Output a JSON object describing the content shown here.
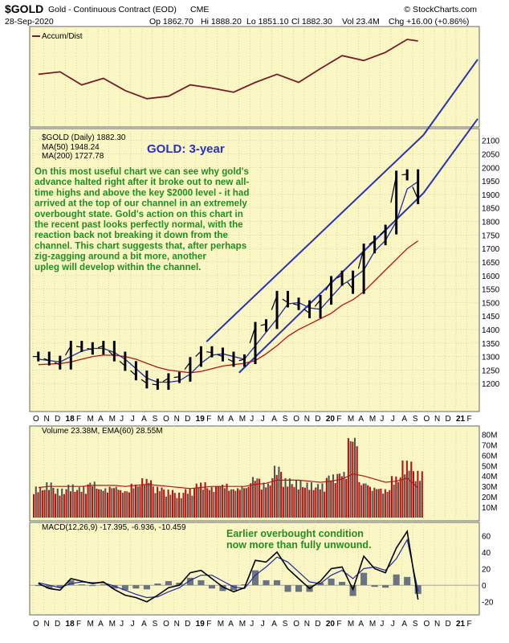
{
  "header": {
    "symbol": "$GOLD",
    "description": "Gold - Continuous Contract (EOD)",
    "exchange": "CME",
    "date": "28-Sep-2020",
    "op": "Op 1862.70",
    "hi": "Hi 1888.20",
    "lo": "Lo 1851.10",
    "cl": "Cl 1882.30",
    "vol": "Vol 23.4M",
    "chg": "Chg +16.00 (+0.86%)",
    "watermark": "© StockCharts.com"
  },
  "colors": {
    "panel_bg": "#fbf7c5",
    "price": "#000000",
    "ma50": "#1f2aa8",
    "ma200": "#b81414",
    "channel": "#2633b8",
    "annotation": "#1f8f1f",
    "title": "#2430c8",
    "volume_up": "#b81414",
    "volume_down": "#555555",
    "macd_hist": "#6a7480"
  },
  "chart_data": [
    {
      "type": "line",
      "panel": "accum-dist",
      "legend": "Accum/Dist",
      "x": [
        "2017-10",
        "2017-12",
        "2018-02",
        "2018-04",
        "2018-06",
        "2018-08",
        "2018-10",
        "2018-12",
        "2019-02",
        "2019-04",
        "2019-06",
        "2019-08",
        "2019-10",
        "2019-12",
        "2020-02",
        "2020-04",
        "2020-06",
        "2020-08",
        "2020-09"
      ],
      "values": [
        0.55,
        0.58,
        0.42,
        0.5,
        0.35,
        0.25,
        0.28,
        0.42,
        0.38,
        0.33,
        0.45,
        0.55,
        0.45,
        0.62,
        0.78,
        0.72,
        0.82,
        0.98,
        0.96
      ]
    },
    {
      "type": "line",
      "panel": "price",
      "legend": [
        "$GOLD (Daily) 1882.30",
        "MA(50) 1948.24",
        "MA(200) 1727.78"
      ],
      "title": "GOLD: 3-year",
      "annotation": "On this most useful chart we can see why gold's advance halted right after it broke out to new all-time highs and above the key $2000 level - it had arrived at the top of our channel in an extremely overbought state. Gold's action on this chart in the recent past looks perfectly normal, with the reaction back not breaking it down from the channel. This chart suggests that, after perhaps zig-zagging around a bit more, another upleg will develop within the channel.",
      "annotation_lines": [
        "On this most useful chart we can see why gold's",
        "advance halted right after it broke out to new all-",
        "time highs and above the key $2000 level - it had",
        "arrived at the top of our channel in an extremely",
        "overbought state. Gold's action on this chart in",
        "the recent past looks perfectly normal, with the",
        "reaction back not breaking it down from the",
        "channel. This chart suggests that, after perhaps",
        "zig-zagging around a bit more, another",
        "upleg will develop within the channel."
      ],
      "y_ticks": [
        2100,
        2050,
        2000,
        1950,
        1900,
        1850,
        1800,
        1750,
        1700,
        1650,
        1600,
        1550,
        1500,
        1450,
        1400,
        1350,
        1300,
        1250,
        1200
      ],
      "x": [
        "2017-10",
        "2017-11",
        "2017-12",
        "2018-01",
        "2018-02",
        "2018-03",
        "2018-04",
        "2018-05",
        "2018-06",
        "2018-07",
        "2018-08",
        "2018-09",
        "2018-10",
        "2018-11",
        "2018-12",
        "2019-01",
        "2019-02",
        "2019-03",
        "2019-04",
        "2019-05",
        "2019-06",
        "2019-07",
        "2019-08",
        "2019-09",
        "2019-10",
        "2019-11",
        "2019-12",
        "2020-01",
        "2020-02",
        "2020-03",
        "2020-04",
        "2020-05",
        "2020-06",
        "2020-07",
        "2020-08",
        "2020-09"
      ],
      "series": [
        {
          "name": "$GOLD",
          "values": [
            1300,
            1285,
            1270,
            1340,
            1335,
            1325,
            1340,
            1300,
            1265,
            1230,
            1200,
            1195,
            1220,
            1225,
            1280,
            1320,
            1315,
            1300,
            1280,
            1290,
            1410,
            1420,
            1525,
            1500,
            1490,
            1460,
            1510,
            1580,
            1600,
            1550,
            1700,
            1730,
            1770,
            1970,
            1975,
            1882
          ]
        },
        {
          "name": "MA(50)",
          "values": [
            1290,
            1285,
            1280,
            1300,
            1320,
            1330,
            1330,
            1315,
            1290,
            1255,
            1220,
            1205,
            1205,
            1210,
            1235,
            1275,
            1305,
            1310,
            1300,
            1290,
            1340,
            1390,
            1440,
            1495,
            1500,
            1480,
            1475,
            1520,
            1565,
            1590,
            1620,
            1690,
            1730,
            1800,
            1920,
            1948
          ]
        },
        {
          "name": "MA(200)",
          "values": [
            1270,
            1272,
            1274,
            1280,
            1290,
            1300,
            1305,
            1305,
            1300,
            1290,
            1275,
            1260,
            1250,
            1245,
            1240,
            1245,
            1255,
            1265,
            1270,
            1275,
            1285,
            1310,
            1340,
            1375,
            1400,
            1420,
            1440,
            1460,
            1490,
            1510,
            1540,
            1580,
            1620,
            1660,
            1700,
            1728
          ]
        }
      ],
      "channel": {
        "upper": [
          {
            "x": "2019-02",
            "y": 1355
          },
          {
            "x": "2020-10",
            "y": 2120
          }
        ],
        "lower": [
          {
            "x": "2019-05",
            "y": 1240
          },
          {
            "x": "2020-10",
            "y": 1905
          }
        ],
        "upper_ext": [
          {
            "x": "2020-10",
            "y": 2120
          },
          {
            "x": "2021-03",
            "y": 2400
          }
        ],
        "lower_ext": [
          {
            "x": "2020-10",
            "y": 1905
          },
          {
            "x": "2021-03",
            "y": 2180
          }
        ]
      }
    },
    {
      "type": "bar",
      "panel": "volume",
      "legend": "Volume 23.38M, EMA(60) 28.55M",
      "y_ticks": [
        "80M",
        "70M",
        "60M",
        "50M",
        "40M",
        "30M",
        "20M",
        "10M"
      ],
      "x": [
        "2017-10",
        "2017-11",
        "2017-12",
        "2018-01",
        "2018-02",
        "2018-03",
        "2018-04",
        "2018-05",
        "2018-06",
        "2018-07",
        "2018-08",
        "2018-09",
        "2018-10",
        "2018-11",
        "2018-12",
        "2019-01",
        "2019-02",
        "2019-03",
        "2019-04",
        "2019-05",
        "2019-06",
        "2019-07",
        "2019-08",
        "2019-09",
        "2019-10",
        "2019-11",
        "2019-12",
        "2020-01",
        "2020-02",
        "2020-03",
        "2020-04",
        "2020-05",
        "2020-06",
        "2020-07",
        "2020-08",
        "2020-09"
      ],
      "values": [
        30,
        34,
        28,
        32,
        30,
        35,
        29,
        31,
        27,
        33,
        38,
        30,
        27,
        24,
        28,
        34,
        30,
        33,
        29,
        31,
        40,
        34,
        50,
        38,
        36,
        34,
        33,
        42,
        45,
        80,
        35,
        30,
        28,
        40,
        55,
        45
      ],
      "ema60": [
        29,
        30,
        30,
        30,
        30,
        31,
        31,
        31,
        30,
        31,
        32,
        31,
        30,
        29,
        28,
        29,
        30,
        30,
        30,
        30,
        32,
        33,
        36,
        36,
        36,
        35,
        34,
        35,
        37,
        42,
        40,
        37,
        34,
        35,
        38,
        28.55
      ]
    },
    {
      "type": "line",
      "panel": "macd",
      "legend": "MACD(12,26,9) -17.395, -6.936, -10.459",
      "annotation_lines": [
        "Earlier overbought condition",
        "now more than fully unwound."
      ],
      "y_ticks": [
        60,
        40,
        20,
        0,
        -20
      ],
      "x": [
        "2017-10",
        "2017-11",
        "2017-12",
        "2018-01",
        "2018-02",
        "2018-03",
        "2018-04",
        "2018-05",
        "2018-06",
        "2018-07",
        "2018-08",
        "2018-09",
        "2018-10",
        "2018-11",
        "2018-12",
        "2019-01",
        "2019-02",
        "2019-03",
        "2019-04",
        "2019-05",
        "2019-06",
        "2019-07",
        "2019-08",
        "2019-09",
        "2019-10",
        "2019-11",
        "2019-12",
        "2020-01",
        "2020-02",
        "2020-03",
        "2020-04",
        "2020-05",
        "2020-06",
        "2020-07",
        "2020-08",
        "2020-09"
      ],
      "series": [
        {
          "name": "MACD",
          "values": [
            2,
            -4,
            -6,
            8,
            5,
            2,
            4,
            -5,
            -12,
            -15,
            -20,
            -12,
            -3,
            0,
            15,
            18,
            8,
            -2,
            -8,
            -3,
            30,
            28,
            40,
            20,
            8,
            -4,
            5,
            20,
            22,
            -5,
            35,
            20,
            15,
            45,
            65,
            -17.4
          ]
        },
        {
          "name": "Signal",
          "values": [
            3,
            0,
            -3,
            2,
            4,
            3,
            3,
            -1,
            -6,
            -11,
            -15,
            -14,
            -8,
            -3,
            6,
            12,
            12,
            5,
            -2,
            -4,
            12,
            22,
            34,
            28,
            16,
            4,
            2,
            12,
            18,
            8,
            20,
            22,
            18,
            32,
            55,
            -6.9
          ]
        }
      ]
    }
  ],
  "x_axis_labels": [
    "O",
    "N",
    "D",
    "18",
    "F",
    "M",
    "A",
    "M",
    "J",
    "J",
    "A",
    "S",
    "O",
    "N",
    "D",
    "19",
    "F",
    "M",
    "A",
    "M",
    "J",
    "J",
    "A",
    "S",
    "O",
    "N",
    "D",
    "20",
    "F",
    "M",
    "A",
    "M",
    "J",
    "J",
    "A",
    "S",
    "O",
    "N",
    "D",
    "21",
    "F"
  ]
}
